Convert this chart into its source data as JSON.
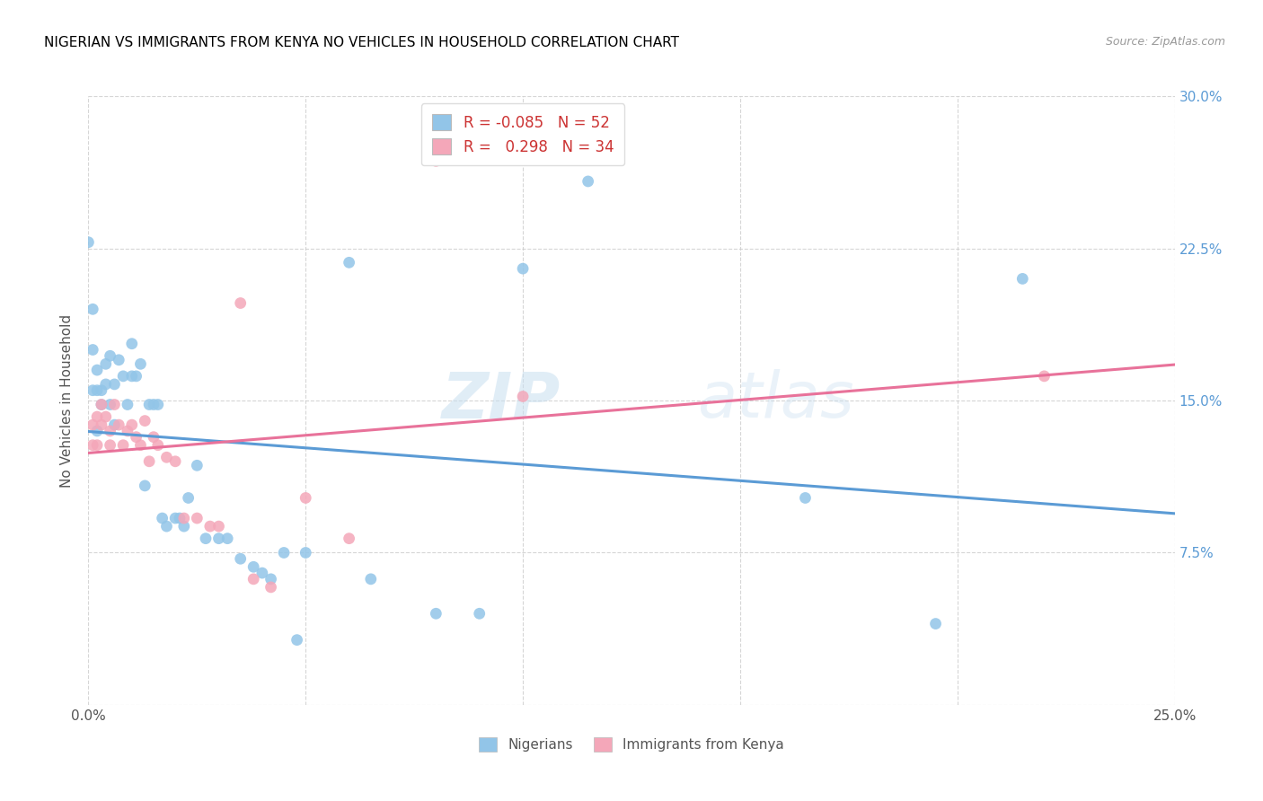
{
  "title": "NIGERIAN VS IMMIGRANTS FROM KENYA NO VEHICLES IN HOUSEHOLD CORRELATION CHART",
  "source": "Source: ZipAtlas.com",
  "ylabel": "No Vehicles in Household",
  "xlim": [
    0.0,
    0.25
  ],
  "ylim": [
    0.0,
    0.3
  ],
  "xticks": [
    0.0,
    0.05,
    0.1,
    0.15,
    0.2,
    0.25
  ],
  "yticks": [
    0.0,
    0.075,
    0.15,
    0.225,
    0.3
  ],
  "xtick_labels": [
    "0.0%",
    "",
    "",
    "",
    "",
    "25.0%"
  ],
  "ytick_labels_right": [
    "",
    "7.5%",
    "15.0%",
    "22.5%",
    "30.0%"
  ],
  "legend_labels": [
    "Nigerians",
    "Immigrants from Kenya"
  ],
  "nigerian_R": "-0.085",
  "nigerian_N": "52",
  "kenya_R": "0.298",
  "kenya_N": "34",
  "nigerian_color": "#92C5E8",
  "kenya_color": "#F4A7B9",
  "nigerian_line_color": "#5B9BD5",
  "kenya_line_color": "#E8729A",
  "watermark_zip": "ZIP",
  "watermark_atlas": "atlas",
  "nigerian_x": [
    0.0,
    0.001,
    0.001,
    0.001,
    0.002,
    0.002,
    0.002,
    0.003,
    0.003,
    0.004,
    0.004,
    0.005,
    0.005,
    0.006,
    0.006,
    0.007,
    0.008,
    0.009,
    0.01,
    0.01,
    0.011,
    0.012,
    0.013,
    0.014,
    0.015,
    0.016,
    0.017,
    0.018,
    0.02,
    0.021,
    0.022,
    0.023,
    0.025,
    0.027,
    0.03,
    0.032,
    0.035,
    0.038,
    0.04,
    0.042,
    0.045,
    0.048,
    0.05,
    0.06,
    0.065,
    0.08,
    0.09,
    0.1,
    0.115,
    0.165,
    0.195,
    0.215
  ],
  "nigerian_y": [
    0.228,
    0.195,
    0.175,
    0.155,
    0.165,
    0.155,
    0.135,
    0.155,
    0.148,
    0.168,
    0.158,
    0.172,
    0.148,
    0.158,
    0.138,
    0.17,
    0.162,
    0.148,
    0.178,
    0.162,
    0.162,
    0.168,
    0.108,
    0.148,
    0.148,
    0.148,
    0.092,
    0.088,
    0.092,
    0.092,
    0.088,
    0.102,
    0.118,
    0.082,
    0.082,
    0.082,
    0.072,
    0.068,
    0.065,
    0.062,
    0.075,
    0.032,
    0.075,
    0.218,
    0.062,
    0.045,
    0.045,
    0.215,
    0.258,
    0.102,
    0.04,
    0.21
  ],
  "kenya_x": [
    0.001,
    0.001,
    0.002,
    0.002,
    0.003,
    0.003,
    0.004,
    0.005,
    0.005,
    0.006,
    0.007,
    0.008,
    0.009,
    0.01,
    0.011,
    0.012,
    0.013,
    0.014,
    0.015,
    0.016,
    0.018,
    0.02,
    0.022,
    0.025,
    0.028,
    0.03,
    0.035,
    0.038,
    0.042,
    0.05,
    0.06,
    0.08,
    0.1,
    0.22
  ],
  "kenya_y": [
    0.138,
    0.128,
    0.142,
    0.128,
    0.148,
    0.138,
    0.142,
    0.135,
    0.128,
    0.148,
    0.138,
    0.128,
    0.135,
    0.138,
    0.132,
    0.128,
    0.14,
    0.12,
    0.132,
    0.128,
    0.122,
    0.12,
    0.092,
    0.092,
    0.088,
    0.088,
    0.198,
    0.062,
    0.058,
    0.102,
    0.082,
    0.268,
    0.152,
    0.162
  ]
}
